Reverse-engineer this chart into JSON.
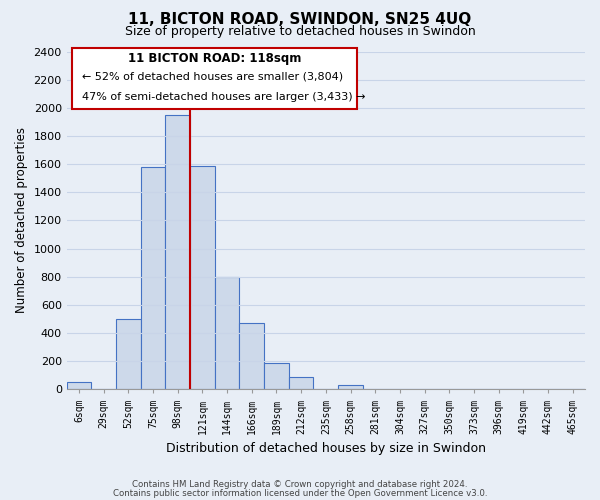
{
  "title": "11, BICTON ROAD, SWINDON, SN25 4UQ",
  "subtitle": "Size of property relative to detached houses in Swindon",
  "xlabel": "Distribution of detached houses by size in Swindon",
  "ylabel": "Number of detached properties",
  "bar_labels": [
    "6sqm",
    "29sqm",
    "52sqm",
    "75sqm",
    "98sqm",
    "121sqm",
    "144sqm",
    "166sqm",
    "189sqm",
    "212sqm",
    "235sqm",
    "258sqm",
    "281sqm",
    "304sqm",
    "327sqm",
    "350sqm",
    "373sqm",
    "396sqm",
    "419sqm",
    "442sqm",
    "465sqm"
  ],
  "bar_values": [
    50,
    0,
    500,
    1580,
    1950,
    1590,
    800,
    470,
    190,
    90,
    0,
    30,
    0,
    0,
    0,
    0,
    0,
    0,
    0,
    0,
    0
  ],
  "bar_color": "#cdd9ea",
  "bar_edge_color": "#4472c4",
  "vline_x": 4.5,
  "vline_color": "#c00000",
  "ylim": [
    0,
    2400
  ],
  "yticks": [
    0,
    200,
    400,
    600,
    800,
    1000,
    1200,
    1400,
    1600,
    1800,
    2000,
    2200,
    2400
  ],
  "annotation_title": "11 BICTON ROAD: 118sqm",
  "annotation_line1": "← 52% of detached houses are smaller (3,804)",
  "annotation_line2": "47% of semi-detached houses are larger (3,433) →",
  "annotation_box_color": "#ffffff",
  "annotation_box_edge": "#c00000",
  "footer_line1": "Contains HM Land Registry data © Crown copyright and database right 2024.",
  "footer_line2": "Contains public sector information licensed under the Open Government Licence v3.0.",
  "bg_color": "#e8eef6",
  "plot_bg_color": "#e8eef6",
  "grid_color": "#c8d4e8"
}
